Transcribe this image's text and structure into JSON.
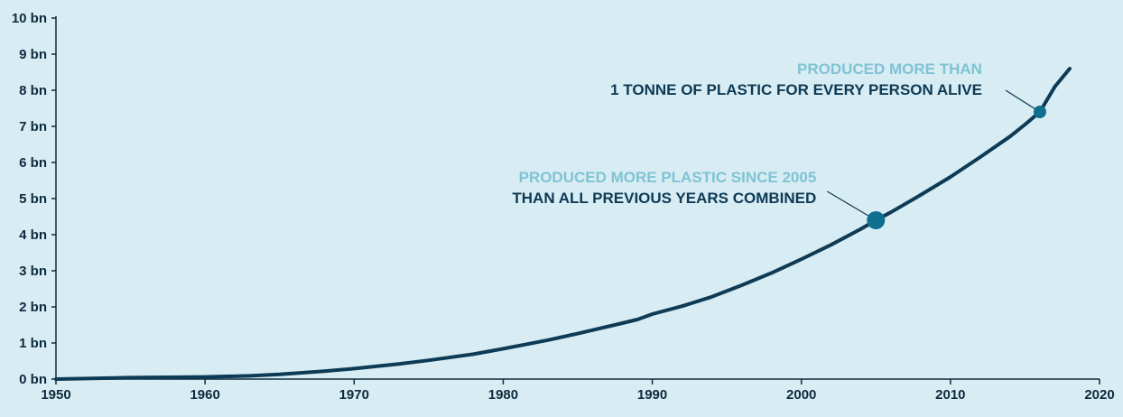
{
  "header": {
    "note": ""
  },
  "chart_data": {
    "type": "line",
    "title": "",
    "xlabel": "",
    "ylabel": "",
    "xlim": [
      1950,
      2020
    ],
    "ylim": [
      0,
      10
    ],
    "x_ticks": [
      1950,
      1960,
      1970,
      1980,
      1990,
      2000,
      2010,
      2020
    ],
    "y_ticks": [
      {
        "value": 0,
        "label": "0 bn"
      },
      {
        "value": 1,
        "label": "1 bn"
      },
      {
        "value": 2,
        "label": "2 bn"
      },
      {
        "value": 3,
        "label": "3 bn"
      },
      {
        "value": 4,
        "label": "4 bn"
      },
      {
        "value": 5,
        "label": "5 bn"
      },
      {
        "value": 6,
        "label": "6 bn"
      },
      {
        "value": 7,
        "label": "7 bn"
      },
      {
        "value": 8,
        "label": "8 bn"
      },
      {
        "value": 9,
        "label": "9 bn"
      },
      {
        "value": 10,
        "label": "10 bn"
      }
    ],
    "series": [
      {
        "color": "#0d3a55",
        "x": [
          1950,
          1955,
          1960,
          1963,
          1965,
          1968,
          1970,
          1973,
          1975,
          1978,
          1980,
          1983,
          1985,
          1988,
          1989,
          1990,
          1992,
          1994,
          1996,
          1998,
          2000,
          2002,
          2004,
          2005,
          2006,
          2008,
          2010,
          2012,
          2014,
          2015,
          2016,
          2017,
          2018
        ],
        "y": [
          0.0,
          0.04,
          0.06,
          0.09,
          0.13,
          0.22,
          0.29,
          0.42,
          0.52,
          0.69,
          0.84,
          1.08,
          1.26,
          1.55,
          1.65,
          1.8,
          2.02,
          2.28,
          2.6,
          2.94,
          3.32,
          3.72,
          4.16,
          4.4,
          4.62,
          5.1,
          5.6,
          6.15,
          6.72,
          7.05,
          7.4,
          8.1,
          8.6
        ]
      }
    ],
    "annotations": [
      {
        "x": 2005,
        "y": 4.4,
        "line1": "PRODUCED MORE PLASTIC SINCE 2005",
        "line2": "THAN ALL PREVIOUS YEARS COMBINED",
        "marker": "large"
      },
      {
        "x": 2016,
        "y": 7.4,
        "line1": "PRODUCED MORE THAN",
        "line2": "1 TONNE OF PLASTIC FOR EVERY PERSON ALIVE",
        "marker": "small"
      }
    ],
    "colors": {
      "background": "#d8ecf3",
      "axis": "#0d2b3e",
      "line": "#0d3a55",
      "marker": "#0e6f8f",
      "label_light": "#7fc3d4",
      "label_dark": "#0d3a55"
    },
    "grid": false,
    "legend": "none"
  }
}
